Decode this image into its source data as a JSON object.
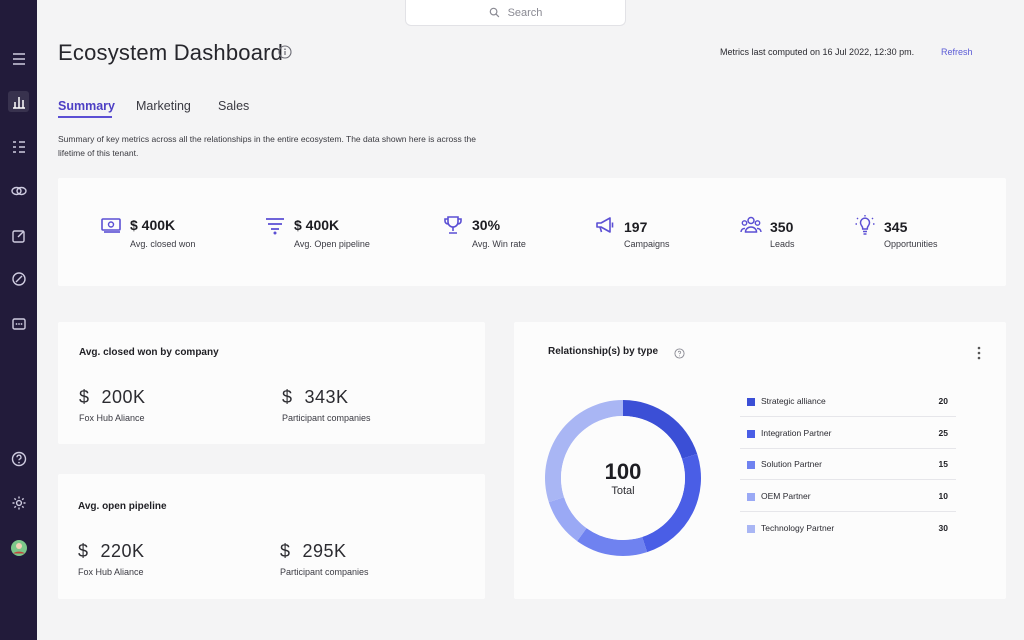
{
  "search": {
    "placeholder": "Search"
  },
  "header": {
    "title": "Ecosystem Dashboard",
    "metrics_note": "Metrics last computed on 16 Jul 2022, 12:30 pm.",
    "refresh_label": "Refresh"
  },
  "tabs": [
    {
      "label": "Summary",
      "active": true
    },
    {
      "label": "Marketing",
      "active": false
    },
    {
      "label": "Sales",
      "active": false
    }
  ],
  "description": "Summary of key metrics across all the relationships in the entire ecosystem. The data shown here is across the lifetime of this tenant.",
  "sidebar": {
    "icons": [
      "menu-icon",
      "bar-chart-icon",
      "checklist-icon",
      "link-icon",
      "edit-icon",
      "compass-icon",
      "more-icon",
      "help-icon",
      "gear-icon",
      "avatar"
    ]
  },
  "kpis": [
    {
      "icon": "money-icon",
      "value": "$ 400K",
      "label": "Avg. closed won"
    },
    {
      "icon": "pipeline-icon",
      "value": "$ 400K",
      "label": "Avg. Open pipeline"
    },
    {
      "icon": "trophy-icon",
      "value": "30%",
      "label": "Avg. Win rate"
    },
    {
      "icon": "megaphone-icon",
      "value": "197",
      "label": "Campaigns"
    },
    {
      "icon": "people-icon",
      "value": "350",
      "label": "Leads"
    },
    {
      "icon": "lightbulb-icon",
      "value": "345",
      "label": "Opportunities"
    }
  ],
  "closed_won": {
    "title": "Avg. closed won by company",
    "items": [
      {
        "currency": "$",
        "value": "200K",
        "label": "Fox Hub Aliance"
      },
      {
        "currency": "$",
        "value": "343K",
        "label": "Participant companies"
      }
    ]
  },
  "open_pipeline": {
    "title": "Avg. open pipeline",
    "items": [
      {
        "currency": "$",
        "value": "220K",
        "label": "Fox Hub Aliance"
      },
      {
        "currency": "$",
        "value": "295K",
        "label": "Participant companies"
      }
    ]
  },
  "relationships": {
    "title": "Relationship(s) by type",
    "total_value": "100",
    "total_label": "Total"
  },
  "colors": {
    "accent": "#5b4fd4",
    "sidebar": "#221b3a"
  },
  "chart_data": {
    "type": "pie",
    "categories": [
      "Strategic alliance",
      "Integration Partner",
      "Solution Partner",
      "OEM Partner",
      "Technology Partner"
    ],
    "values": [
      20,
      25,
      15,
      10,
      30
    ],
    "colors": [
      "#3b4fd6",
      "#4a5ee6",
      "#6f82f0",
      "#9aa9f5",
      "#a9b6f4"
    ],
    "title": "Relationship(s) by type",
    "legend": "right"
  }
}
